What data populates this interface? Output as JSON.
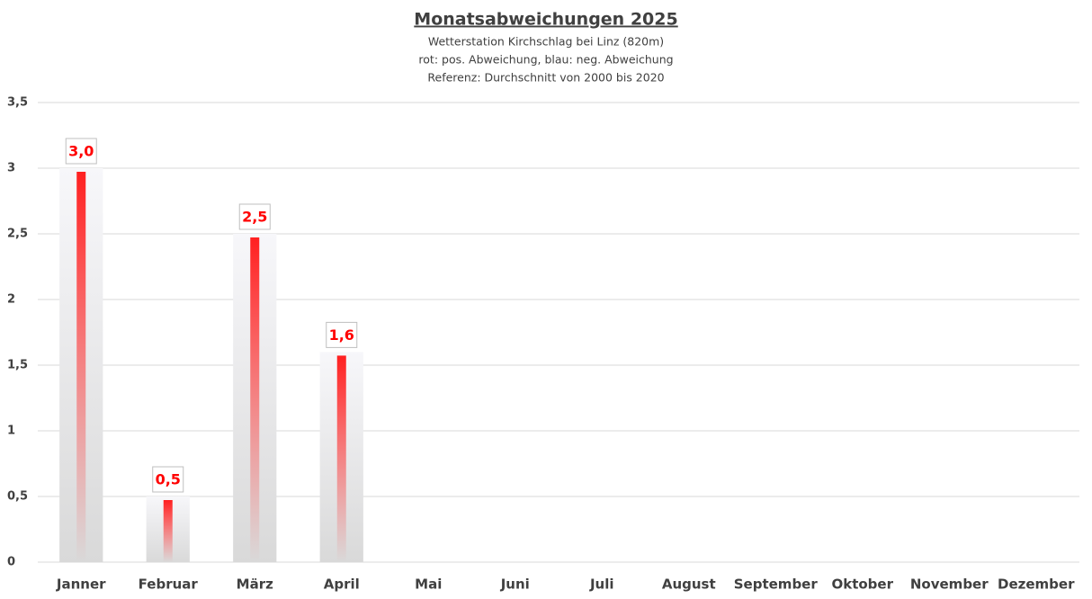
{
  "chart_data": {
    "type": "bar",
    "title": "Monatsabweichungen 2025",
    "subtitle": [
      "Wetterstation Kirchschlag bei Linz (820m)",
      "rot: pos. Abweichung, blau: neg. Abweichung",
      "Referenz: Durchschnitt von 2000 bis 2020"
    ],
    "categories": [
      "Janner",
      "Februar",
      "März",
      "April",
      "Mai",
      "Juni",
      "Juli",
      "August",
      "September",
      "Oktober",
      "November",
      "Dezember"
    ],
    "values": [
      3.0,
      0.5,
      2.5,
      1.6,
      null,
      null,
      null,
      null,
      null,
      null,
      null,
      null
    ],
    "value_labels": [
      "3,0",
      "0,5",
      "2,5",
      "1,6",
      null,
      null,
      null,
      null,
      null,
      null,
      null,
      null
    ],
    "color": "#ff0000",
    "ylim": [
      0,
      3.5
    ],
    "yticks": [
      0,
      {
        "value": 0.5,
        "label": "0,5"
      },
      1,
      {
        "value": 1.5,
        "label": "1,5"
      },
      2,
      {
        "value": 2.5,
        "label": "2,5"
      },
      3,
      {
        "value": 3.5,
        "label": "3,5"
      }
    ],
    "grid": true
  }
}
